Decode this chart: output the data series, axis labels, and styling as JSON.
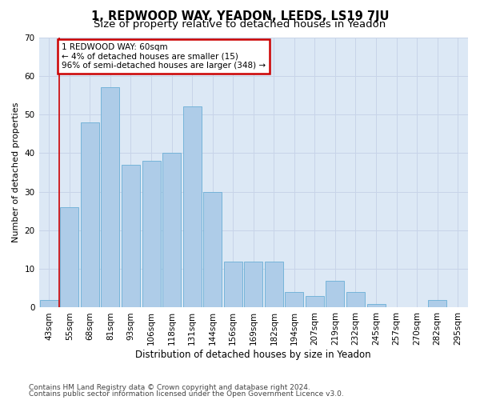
{
  "title": "1, REDWOOD WAY, YEADON, LEEDS, LS19 7JU",
  "subtitle": "Size of property relative to detached houses in Yeadon",
  "xlabel": "Distribution of detached houses by size in Yeadon",
  "ylabel": "Number of detached properties",
  "categories": [
    "43sqm",
    "55sqm",
    "68sqm",
    "81sqm",
    "93sqm",
    "106sqm",
    "118sqm",
    "131sqm",
    "144sqm",
    "156sqm",
    "169sqm",
    "182sqm",
    "194sqm",
    "207sqm",
    "219sqm",
    "232sqm",
    "245sqm",
    "257sqm",
    "270sqm",
    "282sqm",
    "295sqm"
  ],
  "values": [
    2,
    26,
    48,
    57,
    37,
    38,
    40,
    52,
    30,
    12,
    12,
    12,
    4,
    3,
    7,
    4,
    1,
    0,
    0,
    2,
    0
  ],
  "bar_color": "#aecce8",
  "bar_edge_color": "#6aaed6",
  "highlight_color": "#cc0000",
  "annotation_text": "1 REDWOOD WAY: 60sqm\n← 4% of detached houses are smaller (15)\n96% of semi-detached houses are larger (348) →",
  "annotation_box_color": "#ffffff",
  "annotation_box_edge": "#cc0000",
  "ylim": [
    0,
    70
  ],
  "yticks": [
    0,
    10,
    20,
    30,
    40,
    50,
    60,
    70
  ],
  "grid_color": "#c8d4e8",
  "background_color": "#dce8f5",
  "footer_line1": "Contains HM Land Registry data © Crown copyright and database right 2024.",
  "footer_line2": "Contains public sector information licensed under the Open Government Licence v3.0.",
  "title_fontsize": 10.5,
  "subtitle_fontsize": 9.5,
  "xlabel_fontsize": 8.5,
  "ylabel_fontsize": 8,
  "tick_fontsize": 7.5,
  "footer_fontsize": 6.5,
  "annotation_fontsize": 7.5
}
